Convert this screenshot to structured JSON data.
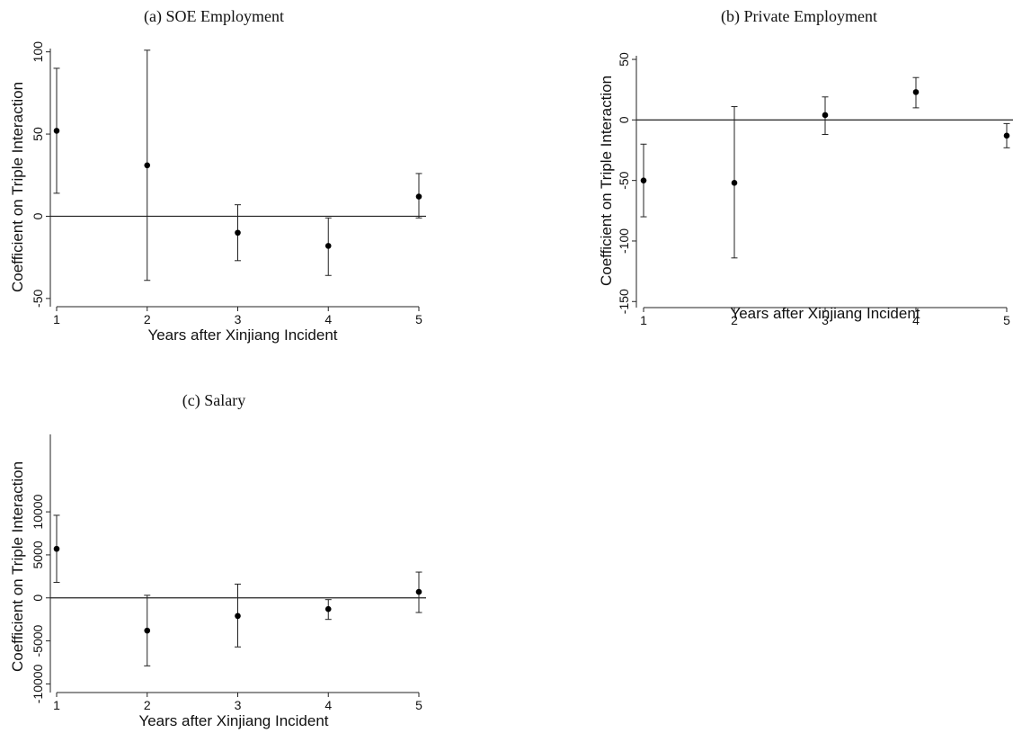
{
  "chart_data": [
    {
      "type": "scatter",
      "title": "(a) SOE Employment",
      "xlabel": "Years after Xinjiang Incident",
      "ylabel": "Coefficient on Triple Interaction",
      "x": [
        1,
        2,
        3,
        4,
        5
      ],
      "xticks": [
        1,
        2,
        3,
        4,
        5
      ],
      "xlim": [
        1,
        5
      ],
      "yticks": [
        -50,
        0,
        50,
        100
      ],
      "ylim": [
        -55,
        102
      ],
      "estimates": [
        52,
        31,
        -10,
        -18,
        12
      ],
      "ci_lower": [
        14,
        -39,
        -27,
        -36,
        -1
      ],
      "ci_upper": [
        90,
        101,
        7,
        -1,
        26
      ],
      "reference_line_y": 0
    },
    {
      "type": "scatter",
      "title": "(b) Private Employment",
      "xlabel": "Years after Xinjiang Incident",
      "ylabel": "Coefficient on Triple Interaction",
      "x": [
        1,
        2,
        3,
        4,
        5
      ],
      "xticks": [
        1,
        2,
        3,
        4,
        5
      ],
      "xlim": [
        1,
        5
      ],
      "yticks": [
        -150,
        -100,
        -50,
        0,
        50
      ],
      "ylim": [
        -155,
        53
      ],
      "estimates": [
        -50,
        -52,
        4,
        23,
        -13
      ],
      "ci_lower": [
        -80,
        -114,
        -12,
        10,
        -23
      ],
      "ci_upper": [
        -20,
        11,
        19,
        35,
        -3
      ],
      "reference_line_y": 0
    },
    {
      "type": "scatter",
      "title": "(c) Salary",
      "xlabel": "Years after Xinjiang Incident",
      "ylabel": "Coefficient on Triple Interaction",
      "x": [
        1,
        2,
        3,
        4,
        5
      ],
      "xticks": [
        1,
        2,
        3,
        4,
        5
      ],
      "xlim": [
        1,
        5
      ],
      "yticks": [
        -10000,
        -5000,
        0,
        5000,
        10000
      ],
      "ytick_labels": [
        "-10000",
        "-5000",
        "0",
        "5000",
        "10000"
      ],
      "ylim": [
        -11000,
        19000
      ],
      "estimates": [
        5700,
        -3800,
        -2100,
        -1300,
        700
      ],
      "ci_lower": [
        1800,
        -7900,
        -5700,
        -2500,
        -1700
      ],
      "ci_upper": [
        9600,
        300,
        1600,
        -200,
        3000
      ],
      "reference_line_y": 0
    }
  ]
}
